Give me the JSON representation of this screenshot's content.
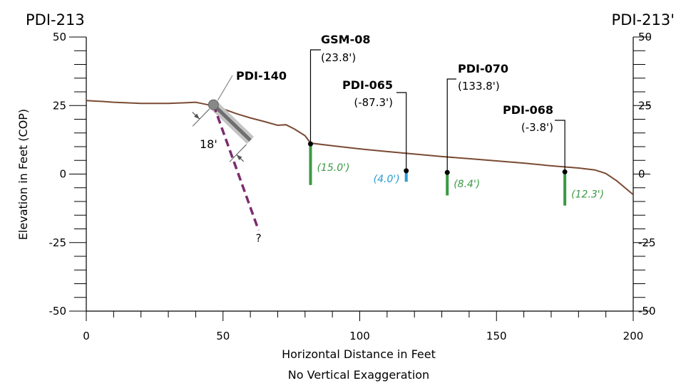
{
  "section": {
    "start_label": "PDI-213",
    "end_label": "PDI-213'"
  },
  "axes": {
    "ylabel": "Elevation in Feet (COP)",
    "xlabel": "Horizontal Distance in Feet",
    "xlabel_note": "No Vertical Exaggeration",
    "x_ticks": [
      "0",
      "50",
      "100",
      "150",
      "200"
    ],
    "y_ticks": [
      "50",
      "25",
      "0",
      "-25",
      "-50"
    ]
  },
  "chart_data": {
    "type": "line",
    "xlim": [
      0,
      200
    ],
    "ylim": [
      -50,
      50
    ],
    "x_minor_step": 10,
    "y_minor_step": 5,
    "ground_color": "#7a4a33",
    "ground_surface": [
      [
        0,
        26.8
      ],
      [
        6,
        26.5
      ],
      [
        10,
        26.2
      ],
      [
        20,
        25.8
      ],
      [
        30,
        25.8
      ],
      [
        36,
        26.0
      ],
      [
        40,
        26.2
      ],
      [
        42,
        25.8
      ],
      [
        46,
        25.0
      ],
      [
        50,
        23.8
      ],
      [
        55,
        22.0
      ],
      [
        60,
        20.5
      ],
      [
        65,
        19.2
      ],
      [
        70,
        17.8
      ],
      [
        73,
        18.0
      ],
      [
        76,
        16.5
      ],
      [
        80,
        14.0
      ],
      [
        82,
        11.3
      ],
      [
        90,
        10.3
      ],
      [
        100,
        9.2
      ],
      [
        110,
        8.2
      ],
      [
        120,
        7.3
      ],
      [
        130,
        6.4
      ],
      [
        140,
        5.6
      ],
      [
        150,
        4.8
      ],
      [
        160,
        4.0
      ],
      [
        170,
        3.0
      ],
      [
        180,
        2.2
      ],
      [
        186,
        1.5
      ],
      [
        190,
        0.2
      ],
      [
        194,
        -2.5
      ],
      [
        200,
        -7.5
      ]
    ],
    "wells": [
      {
        "name": "GSM-08",
        "offset": "(23.8')",
        "x": 82,
        "top": 11.0,
        "bottom": -4.0,
        "depth_label": "(15.0')",
        "color": "#3a9a44"
      },
      {
        "name": "PDI-065",
        "offset": "(-87.3')",
        "x": 117,
        "top": 1.2,
        "bottom": -2.8,
        "depth_label": "(4.0')",
        "color": "#2a9ad0"
      },
      {
        "name": "PDI-070",
        "offset": "(133.8')",
        "x": 132,
        "top": 0.6,
        "bottom": -7.8,
        "depth_label": "(8.4')",
        "color": "#3a9a44"
      },
      {
        "name": "PDI-068",
        "offset": "(-3.8')",
        "x": 175,
        "top": 0.8,
        "bottom": -11.5,
        "depth_label": "(12.3')",
        "color": "#3a9a44"
      }
    ],
    "angled_boring": {
      "name": "PDI-140",
      "top": [
        46.5,
        25.3
      ],
      "end": [
        63,
        -20.5
      ],
      "end_label": "?",
      "screen_length_label": "18'",
      "screen_color": "#888888",
      "projection_color": "#7b2c6e"
    }
  }
}
